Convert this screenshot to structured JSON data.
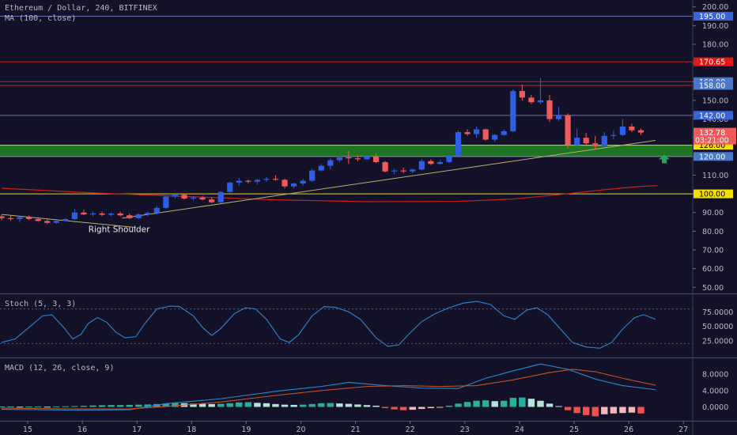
{
  "header": {
    "symbol_line": "Ethereum / Dollar, 240, BITFINEX",
    "ma_label": "MA (100, close)",
    "stoch_label": "Stoch (5, 3, 3)",
    "macd_label": "MACD (12, 26, close, 9)"
  },
  "annotation": {
    "text": "Right Shoulder"
  },
  "colors": {
    "background": "#131128",
    "up_candle": "#2f5ee6",
    "down_candle": "#ef5a5a",
    "support_zone": "#1f7a22",
    "ma_line": "#c62020",
    "trendline": "#b8b070",
    "stoch_line": "#2e88c9",
    "macd_line": "#2e88c9",
    "signal_line": "#c8502a",
    "hist_up_strong": "#2ab09a",
    "hist_up_weak": "#b6e3dc",
    "hist_down_strong": "#ef5050",
    "hist_down_weak": "#f4b8bd"
  },
  "chart_data": {
    "type": "candlestick",
    "title": "Ethereum / Dollar, 240, BITFINEX",
    "price_axis": {
      "ticks": [
        "200.00",
        "190.00",
        "180.00",
        "170.00",
        "160.00",
        "150.00",
        "140.00",
        "130.00",
        "120.00",
        "110.00",
        "100.00",
        "90.00",
        "80.00",
        "70.00",
        "60.00",
        "50.00"
      ],
      "ylim": [
        48,
        202
      ]
    },
    "x_axis": {
      "ticks": [
        "15",
        "16",
        "17",
        "18",
        "19",
        "20",
        "21",
        "22",
        "23",
        "24",
        "25",
        "26",
        "27"
      ]
    },
    "candles": [
      {
        "o": 88.0,
        "h": 89.0,
        "l": 86.0,
        "c": 87.0
      },
      {
        "o": 87.0,
        "h": 88.5,
        "l": 85.5,
        "c": 86.5
      },
      {
        "o": 86.5,
        "h": 88.0,
        "l": 85.0,
        "c": 87.5
      },
      {
        "o": 87.5,
        "h": 88.5,
        "l": 86.0,
        "c": 86.5
      },
      {
        "o": 86.5,
        "h": 87.5,
        "l": 85.0,
        "c": 85.5
      },
      {
        "o": 85.5,
        "h": 86.5,
        "l": 84.0,
        "c": 84.5
      },
      {
        "o": 84.5,
        "h": 86.0,
        "l": 84.0,
        "c": 85.5
      },
      {
        "o": 85.5,
        "h": 87.0,
        "l": 85.0,
        "c": 86.5
      },
      {
        "o": 86.5,
        "h": 92.0,
        "l": 86.0,
        "c": 90.0
      },
      {
        "o": 90.0,
        "h": 91.5,
        "l": 88.5,
        "c": 89.0
      },
      {
        "o": 89.0,
        "h": 90.5,
        "l": 88.0,
        "c": 89.5
      },
      {
        "o": 89.5,
        "h": 90.5,
        "l": 88.0,
        "c": 88.8
      },
      {
        "o": 88.8,
        "h": 90.0,
        "l": 88.0,
        "c": 89.5
      },
      {
        "o": 89.5,
        "h": 90.5,
        "l": 88.0,
        "c": 88.5
      },
      {
        "o": 88.5,
        "h": 89.5,
        "l": 86.5,
        "c": 87.0
      },
      {
        "o": 87.0,
        "h": 89.5,
        "l": 86.5,
        "c": 89.0
      },
      {
        "o": 89.0,
        "h": 90.5,
        "l": 88.0,
        "c": 89.8
      },
      {
        "o": 89.8,
        "h": 93.5,
        "l": 89.0,
        "c": 92.5
      },
      {
        "o": 92.5,
        "h": 99.0,
        "l": 92.0,
        "c": 98.5
      },
      {
        "o": 98.5,
        "h": 100.5,
        "l": 97.5,
        "c": 99.5
      },
      {
        "o": 99.5,
        "h": 100.0,
        "l": 97.0,
        "c": 97.5
      },
      {
        "o": 97.5,
        "h": 98.8,
        "l": 96.5,
        "c": 98.0
      },
      {
        "o": 98.0,
        "h": 99.0,
        "l": 96.5,
        "c": 97.0
      },
      {
        "o": 97.0,
        "h": 98.0,
        "l": 95.0,
        "c": 95.5
      },
      {
        "o": 95.5,
        "h": 101.5,
        "l": 95.0,
        "c": 101.0
      },
      {
        "o": 101.0,
        "h": 106.5,
        "l": 100.5,
        "c": 106.0
      },
      {
        "o": 106.0,
        "h": 108.5,
        "l": 104.5,
        "c": 107.0
      },
      {
        "o": 107.0,
        "h": 107.5,
        "l": 105.5,
        "c": 106.5
      },
      {
        "o": 106.5,
        "h": 108.0,
        "l": 105.0,
        "c": 107.5
      },
      {
        "o": 107.5,
        "h": 109.0,
        "l": 106.5,
        "c": 108.0
      },
      {
        "o": 108.0,
        "h": 110.0,
        "l": 107.0,
        "c": 107.5
      },
      {
        "o": 107.5,
        "h": 108.0,
        "l": 103.0,
        "c": 104.0
      },
      {
        "o": 104.0,
        "h": 106.0,
        "l": 103.0,
        "c": 105.5
      },
      {
        "o": 105.5,
        "h": 108.0,
        "l": 104.5,
        "c": 107.0
      },
      {
        "o": 107.0,
        "h": 113.5,
        "l": 106.5,
        "c": 112.5
      },
      {
        "o": 112.5,
        "h": 116.0,
        "l": 112.0,
        "c": 115.0
      },
      {
        "o": 115.0,
        "h": 119.0,
        "l": 113.0,
        "c": 118.0
      },
      {
        "o": 118.0,
        "h": 120.5,
        "l": 117.0,
        "c": 119.5
      },
      {
        "o": 119.5,
        "h": 123.0,
        "l": 116.0,
        "c": 119.0
      },
      {
        "o": 119.0,
        "h": 120.5,
        "l": 117.5,
        "c": 118.5
      },
      {
        "o": 118.5,
        "h": 121.0,
        "l": 118.0,
        "c": 120.0
      },
      {
        "o": 120.0,
        "h": 121.5,
        "l": 116.5,
        "c": 117.0
      },
      {
        "o": 117.0,
        "h": 117.5,
        "l": 111.5,
        "c": 112.0
      },
      {
        "o": 112.0,
        "h": 113.5,
        "l": 110.5,
        "c": 112.5
      },
      {
        "o": 112.5,
        "h": 114.0,
        "l": 111.0,
        "c": 112.0
      },
      {
        "o": 112.0,
        "h": 113.5,
        "l": 111.0,
        "c": 113.0
      },
      {
        "o": 113.0,
        "h": 118.5,
        "l": 112.5,
        "c": 117.5
      },
      {
        "o": 117.5,
        "h": 118.5,
        "l": 115.5,
        "c": 116.0
      },
      {
        "o": 116.0,
        "h": 118.0,
        "l": 115.5,
        "c": 117.0
      },
      {
        "o": 117.0,
        "h": 121.0,
        "l": 116.5,
        "c": 120.5
      },
      {
        "o": 120.5,
        "h": 134.0,
        "l": 119.5,
        "c": 133.0
      },
      {
        "o": 133.0,
        "h": 134.5,
        "l": 131.0,
        "c": 132.0
      },
      {
        "o": 132.0,
        "h": 136.0,
        "l": 130.0,
        "c": 134.5
      },
      {
        "o": 134.5,
        "h": 135.0,
        "l": 128.5,
        "c": 129.0
      },
      {
        "o": 129.0,
        "h": 132.0,
        "l": 128.0,
        "c": 131.5
      },
      {
        "o": 131.5,
        "h": 134.5,
        "l": 131.0,
        "c": 133.5
      },
      {
        "o": 133.5,
        "h": 156.0,
        "l": 133.0,
        "c": 155.0
      },
      {
        "o": 155.0,
        "h": 158.5,
        "l": 150.0,
        "c": 151.5
      },
      {
        "o": 151.5,
        "h": 153.0,
        "l": 148.0,
        "c": 149.0
      },
      {
        "o": 149.0,
        "h": 162.0,
        "l": 148.0,
        "c": 150.0
      },
      {
        "o": 150.0,
        "h": 153.0,
        "l": 138.5,
        "c": 140.0
      },
      {
        "o": 140.0,
        "h": 146.5,
        "l": 139.0,
        "c": 142.0
      },
      {
        "o": 142.0,
        "h": 143.0,
        "l": 124.0,
        "c": 126.0
      },
      {
        "o": 126.0,
        "h": 135.0,
        "l": 125.0,
        "c": 130.0
      },
      {
        "o": 130.0,
        "h": 132.5,
        "l": 126.0,
        "c": 127.0
      },
      {
        "o": 127.0,
        "h": 131.0,
        "l": 123.5,
        "c": 125.5
      },
      {
        "o": 125.5,
        "h": 133.0,
        "l": 125.0,
        "c": 131.0
      },
      {
        "o": 131.0,
        "h": 134.0,
        "l": 129.0,
        "c": 131.5
      },
      {
        "o": 131.5,
        "h": 140.0,
        "l": 131.0,
        "c": 136.0
      },
      {
        "o": 136.0,
        "h": 137.5,
        "l": 133.0,
        "c": 134.0
      },
      {
        "o": 134.0,
        "h": 135.0,
        "l": 131.5,
        "c": 132.8
      }
    ],
    "ma_100": [
      {
        "x": 0,
        "y": 103.0
      },
      {
        "x": 10,
        "y": 100.5
      },
      {
        "x": 20,
        "y": 98.6
      },
      {
        "x": 30,
        "y": 96.8
      },
      {
        "x": 40,
        "y": 95.8
      },
      {
        "x": 50,
        "y": 96.0
      },
      {
        "x": 56,
        "y": 97.2
      },
      {
        "x": 61,
        "y": 99.6
      },
      {
        "x": 66,
        "y": 102.2
      },
      {
        "x": 70,
        "y": 104.0
      },
      {
        "x": 71.8,
        "y": 104.4
      }
    ],
    "trendlines": [
      {
        "from": {
          "x": 0,
          "y": 89.0
        },
        "to": {
          "x": 14.7,
          "y": 82.0
        }
      },
      {
        "from": {
          "x": 13.2,
          "y": 87.0
        },
        "to": {
          "x": 71.6,
          "y": 128.6
        }
      }
    ],
    "horizontal_levels": [
      {
        "price": 195.0,
        "label": "195.00",
        "badge_color": "#3b63d8",
        "line_color": "#6f6fb0"
      },
      {
        "price": 170.65,
        "label": "170.65",
        "badge_color": "#e01818",
        "line_color": "#d42020"
      },
      {
        "price": 160.0,
        "label": "160.00",
        "badge_color": "#4a78c8",
        "line_color": "#b02a2a"
      },
      {
        "price": 158.0,
        "label": "158.00",
        "badge_color": "#4a78c8",
        "line_color": "#b02a2a"
      },
      {
        "price": 142.0,
        "label": "142.00",
        "badge_color": "#3b63d8",
        "line_color": "#6f6fb0"
      },
      {
        "price": 126.0,
        "label": "126.00",
        "badge_color": "#f5e000",
        "line_color": "#f5e000"
      },
      {
        "price": 120.0,
        "label": "120.00",
        "badge_color": "#4a78c8",
        "line_color": "#8a8ad0"
      },
      {
        "price": 100.0,
        "label": "100.00",
        "badge_color": "#f5e000",
        "line_color": "#e8d800"
      }
    ],
    "support_zone": {
      "from": 120.0,
      "to": 126.0
    },
    "last_price": {
      "value": "132.78",
      "countdown": "03:21:00"
    },
    "stochastic": {
      "ticks": [
        "75.0000",
        "50.0000",
        "25.0000"
      ],
      "ylim": [
        0,
        100
      ],
      "values": [
        {
          "x": 0,
          "y": 22
        },
        {
          "x": 1.5,
          "y": 28
        },
        {
          "x": 3,
          "y": 48
        },
        {
          "x": 4.5,
          "y": 68
        },
        {
          "x": 5.5,
          "y": 70
        },
        {
          "x": 6.8,
          "y": 48
        },
        {
          "x": 7.8,
          "y": 28
        },
        {
          "x": 8.7,
          "y": 36
        },
        {
          "x": 9.5,
          "y": 55
        },
        {
          "x": 10.5,
          "y": 65
        },
        {
          "x": 11.5,
          "y": 57
        },
        {
          "x": 12.5,
          "y": 40
        },
        {
          "x": 13.5,
          "y": 30
        },
        {
          "x": 14.7,
          "y": 32
        },
        {
          "x": 15.7,
          "y": 55
        },
        {
          "x": 17,
          "y": 80
        },
        {
          "x": 18.5,
          "y": 85
        },
        {
          "x": 19.5,
          "y": 84
        },
        {
          "x": 21,
          "y": 68
        },
        {
          "x": 22,
          "y": 48
        },
        {
          "x": 23,
          "y": 34
        },
        {
          "x": 24,
          "y": 46
        },
        {
          "x": 25.5,
          "y": 72
        },
        {
          "x": 26.7,
          "y": 82
        },
        {
          "x": 27.8,
          "y": 80
        },
        {
          "x": 29,
          "y": 62
        },
        {
          "x": 30.5,
          "y": 28
        },
        {
          "x": 31.5,
          "y": 22
        },
        {
          "x": 32.5,
          "y": 35
        },
        {
          "x": 34,
          "y": 68
        },
        {
          "x": 35.3,
          "y": 84
        },
        {
          "x": 36.5,
          "y": 83
        },
        {
          "x": 38,
          "y": 75
        },
        {
          "x": 39.3,
          "y": 62
        },
        {
          "x": 41,
          "y": 30
        },
        {
          "x": 42.3,
          "y": 15
        },
        {
          "x": 43.5,
          "y": 18
        },
        {
          "x": 44.7,
          "y": 38
        },
        {
          "x": 46,
          "y": 58
        },
        {
          "x": 47.5,
          "y": 72
        },
        {
          "x": 49,
          "y": 82
        },
        {
          "x": 50.5,
          "y": 90
        },
        {
          "x": 52,
          "y": 93
        },
        {
          "x": 53.5,
          "y": 88
        },
        {
          "x": 55,
          "y": 68
        },
        {
          "x": 56.2,
          "y": 62
        },
        {
          "x": 57.5,
          "y": 78
        },
        {
          "x": 58.6,
          "y": 82
        },
        {
          "x": 59.8,
          "y": 70
        },
        {
          "x": 61.2,
          "y": 45
        },
        {
          "x": 62.5,
          "y": 22
        },
        {
          "x": 64,
          "y": 14
        },
        {
          "x": 65.5,
          "y": 12
        },
        {
          "x": 66.8,
          "y": 22
        },
        {
          "x": 68,
          "y": 45
        },
        {
          "x": 69.3,
          "y": 65
        },
        {
          "x": 70.3,
          "y": 70
        },
        {
          "x": 71.6,
          "y": 62
        }
      ]
    },
    "macd": {
      "ticks": [
        "8.0000",
        "4.0000",
        "0.0000"
      ],
      "ylim": [
        -3,
        11.5
      ],
      "macd_line": [
        {
          "x": 0,
          "y": -0.6
        },
        {
          "x": 8,
          "y": -0.8
        },
        {
          "x": 14,
          "y": -0.7
        },
        {
          "x": 18,
          "y": 0.8
        },
        {
          "x": 24,
          "y": 2.0
        },
        {
          "x": 30,
          "y": 3.8
        },
        {
          "x": 35,
          "y": 5.0
        },
        {
          "x": 38,
          "y": 6.0
        },
        {
          "x": 42,
          "y": 5.2
        },
        {
          "x": 46,
          "y": 4.6
        },
        {
          "x": 50,
          "y": 4.5
        },
        {
          "x": 53,
          "y": 7.0
        },
        {
          "x": 56,
          "y": 8.8
        },
        {
          "x": 59,
          "y": 10.5
        },
        {
          "x": 62,
          "y": 9.2
        },
        {
          "x": 65,
          "y": 6.8
        },
        {
          "x": 68,
          "y": 5.2
        },
        {
          "x": 71.6,
          "y": 4.2
        }
      ],
      "signal_line": [
        {
          "x": 0,
          "y": -0.3
        },
        {
          "x": 8,
          "y": -0.5
        },
        {
          "x": 14,
          "y": -0.5
        },
        {
          "x": 18,
          "y": 0.1
        },
        {
          "x": 24,
          "y": 1.2
        },
        {
          "x": 30,
          "y": 2.8
        },
        {
          "x": 35,
          "y": 4.0
        },
        {
          "x": 40,
          "y": 5.0
        },
        {
          "x": 44,
          "y": 5.2
        },
        {
          "x": 48,
          "y": 5.0
        },
        {
          "x": 52,
          "y": 5.2
        },
        {
          "x": 56,
          "y": 6.6
        },
        {
          "x": 60,
          "y": 8.4
        },
        {
          "x": 62.5,
          "y": 9.2
        },
        {
          "x": 65,
          "y": 8.6
        },
        {
          "x": 68,
          "y": 7.0
        },
        {
          "x": 71.6,
          "y": 5.3
        }
      ],
      "histogram": [
        0.1,
        0.1,
        0.05,
        0.1,
        0.1,
        0.05,
        0.1,
        0.15,
        0.2,
        0.25,
        0.35,
        0.4,
        0.45,
        0.45,
        0.5,
        0.55,
        0.6,
        0.7,
        0.85,
        1.0,
        0.9,
        0.8,
        0.75,
        0.7,
        0.75,
        0.9,
        1.1,
        1.15,
        1.0,
        0.9,
        0.7,
        0.55,
        0.5,
        0.55,
        0.7,
        0.9,
        0.95,
        0.85,
        0.75,
        0.6,
        0.45,
        0.3,
        -0.3,
        -0.6,
        -0.8,
        -0.7,
        -0.5,
        -0.3,
        -0.1,
        0.3,
        0.8,
        1.2,
        1.5,
        1.6,
        1.4,
        1.5,
        2.2,
        2.3,
        2.0,
        1.5,
        0.8,
        0.2,
        -0.8,
        -1.5,
        -2.0,
        -2.3,
        -1.8,
        -1.6,
        -1.5,
        -1.4,
        -1.6
      ]
    }
  }
}
